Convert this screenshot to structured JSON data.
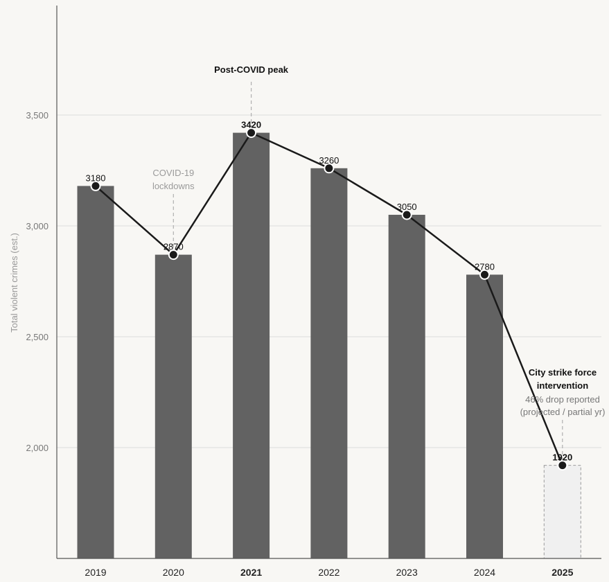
{
  "chart_data": {
    "type": "bar",
    "categories": [
      "2019",
      "2020",
      "2021",
      "2022",
      "2023",
      "2024",
      "2025"
    ],
    "values": [
      3180,
      2870,
      3420,
      3260,
      3050,
      2780,
      1920
    ],
    "value_labels": [
      "3180",
      "2870",
      "3420",
      "3260",
      "3050",
      "2780",
      "1920"
    ],
    "bold_categories": [
      "2021",
      "2025"
    ],
    "projected_categories": [
      "2025"
    ],
    "overlay_line": true,
    "ylabel": "Total violent crimes (est.)",
    "ylim": [
      1500,
      3990
    ],
    "yticks": [
      2000,
      2500,
      3000,
      3500
    ],
    "ytick_labels": [
      "2,000",
      "2,500",
      "3,000",
      "3,500"
    ],
    "grid": true,
    "annotations": [
      {
        "category": "2020",
        "lines": [
          "COVID-19",
          "lockdowns"
        ]
      },
      {
        "category": "2021",
        "title": "Post-COVID peak"
      },
      {
        "category": "2025",
        "title_lines": [
          "City strike force",
          "intervention"
        ],
        "sub_lines": [
          "46% drop reported",
          "(projected / partial yr)"
        ]
      }
    ],
    "colors": {
      "bar": "#626262",
      "projected_fill": "#f0f0f0",
      "projected_stroke": "#9a9a9a",
      "line": "#1a1a1a",
      "grid": "#dddddd",
      "axis": "#555555",
      "background": "#f8f7f4"
    }
  }
}
